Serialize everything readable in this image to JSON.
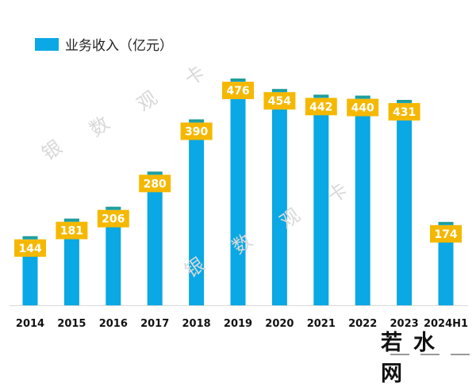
{
  "chart_data": {
    "type": "bar",
    "title": "",
    "xlabel": "",
    "ylabel": "",
    "legend": {
      "label": "业务收入（亿元）",
      "position": "top-left"
    },
    "categories": [
      "2014",
      "2015",
      "2016",
      "2017",
      "2018",
      "2019",
      "2020",
      "2021",
      "2022",
      "2023",
      "2024H1"
    ],
    "values": [
      144,
      181,
      206,
      280,
      390,
      476,
      454,
      442,
      440,
      431,
      174
    ],
    "ylim": [
      0,
      476
    ],
    "grid": false,
    "colors": {
      "bar": "#0aa8e4",
      "label_box": "#f5b800",
      "cap": "#1f9e9a",
      "axis": "#d9d9d9",
      "label_text": "#ffffff"
    }
  },
  "watermarks": [
    "银",
    "数",
    "观",
    "卡"
  ],
  "logo": "若水网"
}
